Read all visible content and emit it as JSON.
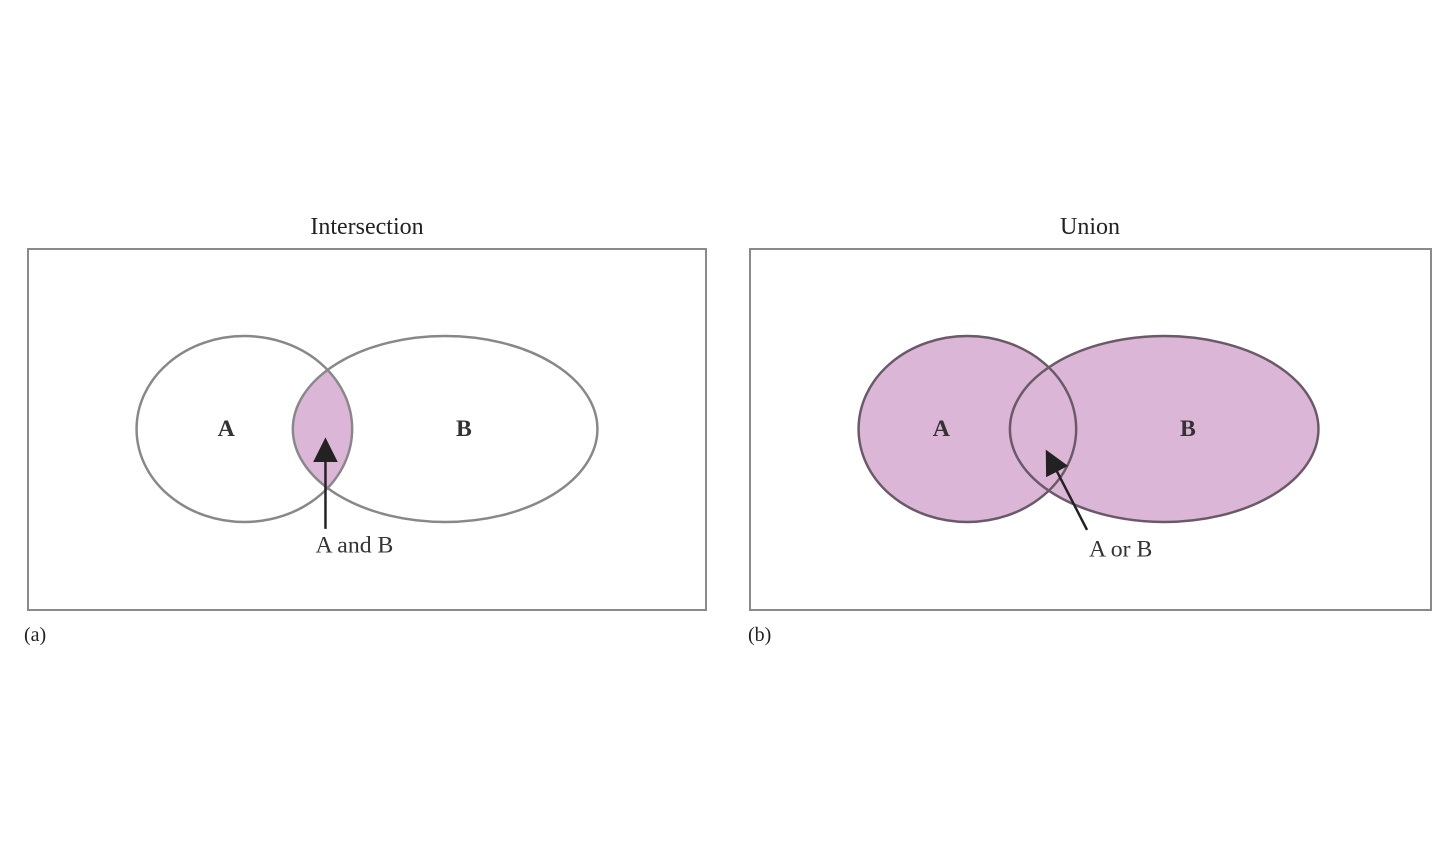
{
  "colors": {
    "fill": "#dcb6d6",
    "outline": "#888888",
    "outline_dark": "#6a5a68",
    "arrow": "#222222",
    "frame": "#8a8a8a"
  },
  "panels": [
    {
      "tag": "(a)",
      "title": "Intersection",
      "set_a": "A",
      "set_b": "B",
      "callout": "A and B",
      "shaded_region": "intersection"
    },
    {
      "tag": "(b)",
      "title": "Union",
      "set_a": "A",
      "set_b": "B",
      "callout": "A or B",
      "shaded_region": "union"
    }
  ]
}
